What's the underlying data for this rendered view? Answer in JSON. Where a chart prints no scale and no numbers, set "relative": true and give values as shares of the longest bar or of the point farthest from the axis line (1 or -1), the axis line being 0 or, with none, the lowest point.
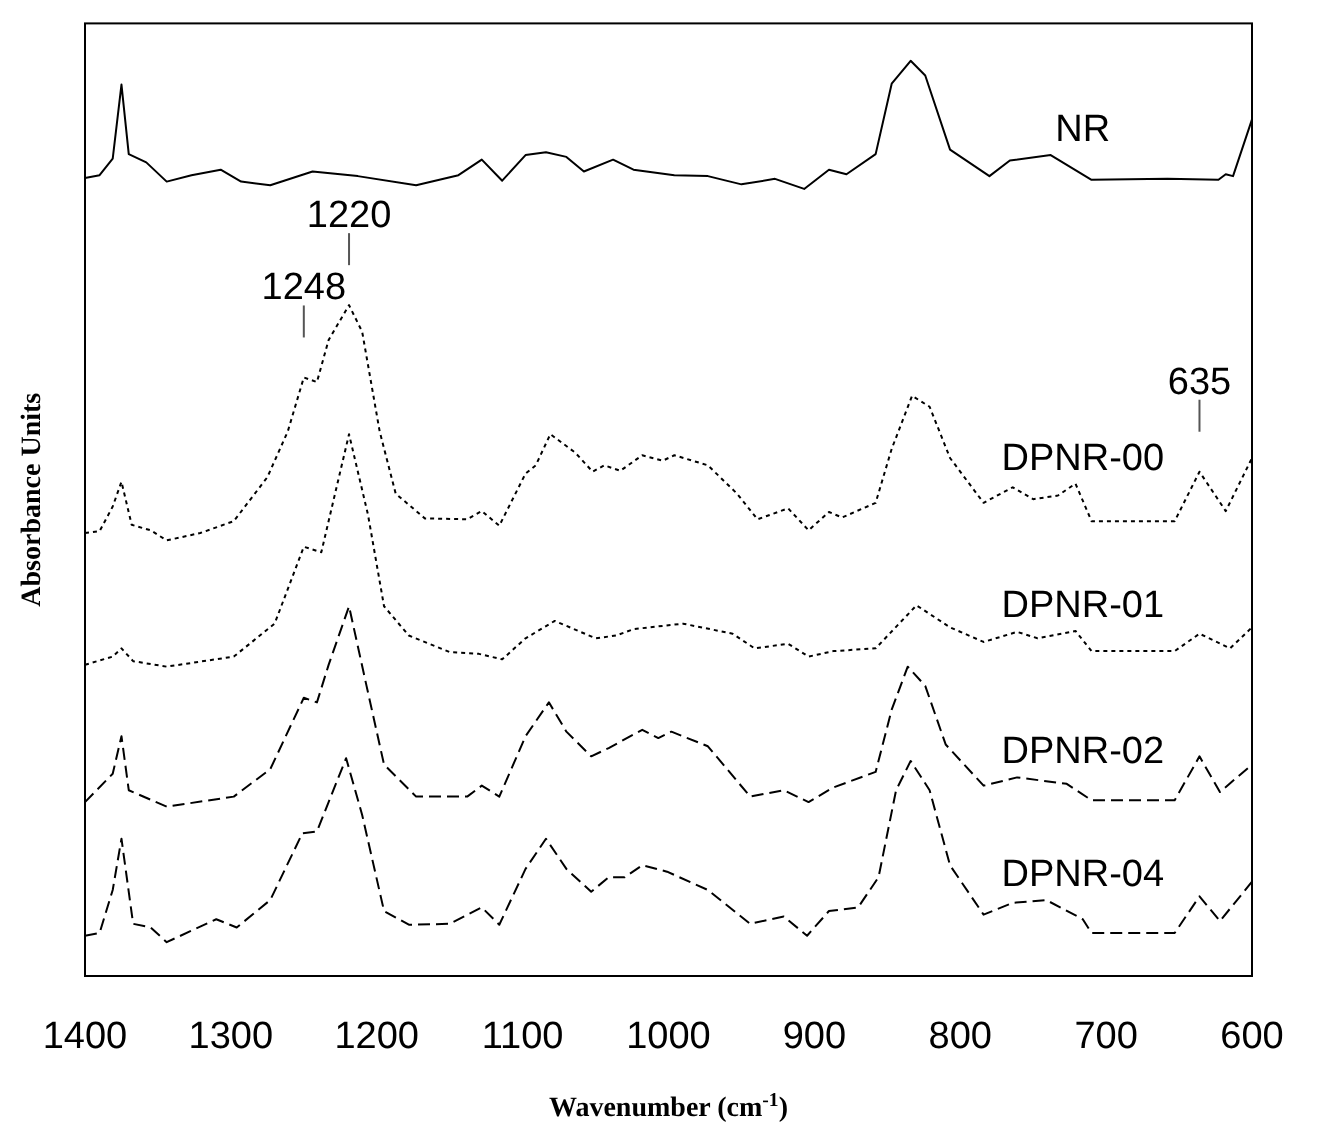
{
  "chart_data": {
    "type": "line",
    "relative": true,
    "xlabel": "Wavenumber (cm$^{-1}$)",
    "ylabel": "Absorbance Units",
    "xlim": [
      1400,
      600
    ],
    "xticks": [
      1400,
      1300,
      1200,
      1100,
      1000,
      900,
      800,
      700,
      600
    ],
    "tick_labels": "x",
    "grid": false,
    "marker": "none",
    "annotations": [
      {
        "text": "1220",
        "x": 1219,
        "y": 0.733
      },
      {
        "text": "1248",
        "x": 1250,
        "y": 0.654
      },
      {
        "text": "635",
        "x": 636,
        "y": 0.551
      }
    ],
    "series": [
      {
        "name": "NR",
        "color": "#000000",
        "line_style": "solid",
        "x": [
          1400,
          1390,
          1381,
          1375,
          1370,
          1358,
          1344,
          1327,
          1307,
          1293,
          1273,
          1244,
          1213,
          1173,
          1144,
          1128,
          1114,
          1098,
          1084,
          1070,
          1058,
          1038,
          1024,
          996,
          973,
          950,
          927,
          907,
          890,
          878,
          858,
          847,
          834,
          824,
          807,
          780,
          766,
          738,
          710,
          658,
          623,
          618,
          613,
          600
        ],
        "values": [
          0.872,
          0.875,
          0.893,
          0.974,
          0.898,
          0.889,
          0.868,
          0.875,
          0.881,
          0.868,
          0.864,
          0.879,
          0.874,
          0.864,
          0.875,
          0.892,
          0.869,
          0.897,
          0.9,
          0.895,
          0.879,
          0.892,
          0.881,
          0.875,
          0.874,
          0.865,
          0.871,
          0.86,
          0.881,
          0.876,
          0.898,
          0.975,
          1,
          0.984,
          0.903,
          0.874,
          0.891,
          0.897,
          0.87,
          0.871,
          0.87,
          0.876,
          0.874,
          0.936
        ]
      },
      {
        "name": "DPNR-00",
        "color": "#000000",
        "line_style": "dotted",
        "x": [
          1400,
          1390,
          1381,
          1375,
          1368,
          1355,
          1344,
          1321,
          1298,
          1275,
          1261,
          1250,
          1241,
          1233,
          1219,
          1210,
          1198,
          1187,
          1167,
          1138,
          1128,
          1116,
          1098,
          1091,
          1081,
          1064,
          1052,
          1044,
          1033,
          1018,
          1004,
          996,
          973,
          953,
          939,
          918,
          904,
          890,
          881,
          858,
          847,
          833,
          821,
          807,
          784,
          764,
          750,
          733,
          721,
          710,
          653,
          636,
          618,
          600
        ],
        "values": [
          0.484,
          0.486,
          0.513,
          0.54,
          0.493,
          0.487,
          0.476,
          0.484,
          0.497,
          0.545,
          0.595,
          0.654,
          0.649,
          0.695,
          0.733,
          0.704,
          0.595,
          0.527,
          0.5,
          0.499,
          0.508,
          0.492,
          0.549,
          0.558,
          0.592,
          0.572,
          0.551,
          0.558,
          0.552,
          0.569,
          0.563,
          0.569,
          0.558,
          0.527,
          0.499,
          0.511,
          0.487,
          0.507,
          0.501,
          0.517,
          0.576,
          0.634,
          0.622,
          0.566,
          0.517,
          0.534,
          0.521,
          0.525,
          0.538,
          0.497,
          0.497,
          0.551,
          0.508,
          0.566
        ]
      },
      {
        "name": "DPNR-01",
        "color": "#000000",
        "line_style": "dotted",
        "x": [
          1400,
          1381,
          1375,
          1367,
          1344,
          1298,
          1270,
          1250,
          1238,
          1228,
          1219,
          1206,
          1195,
          1178,
          1150,
          1130,
          1114,
          1098,
          1078,
          1050,
          1036,
          1024,
          990,
          956,
          941,
          918,
          904,
          887,
          858,
          830,
          807,
          784,
          761,
          747,
          721,
          710,
          653,
          636,
          615,
          600
        ],
        "values": [
          0.34,
          0.349,
          0.358,
          0.344,
          0.338,
          0.349,
          0.385,
          0.469,
          0.463,
          0.531,
          0.592,
          0.504,
          0.404,
          0.372,
          0.354,
          0.352,
          0.346,
          0.369,
          0.388,
          0.369,
          0.372,
          0.379,
          0.385,
          0.374,
          0.358,
          0.363,
          0.349,
          0.355,
          0.358,
          0.405,
          0.381,
          0.365,
          0.376,
          0.369,
          0.377,
          0.355,
          0.355,
          0.374,
          0.358,
          0.381
        ]
      },
      {
        "name": "DPNR-02",
        "color": "#000000",
        "line_style": "dashed",
        "x": [
          1400,
          1381,
          1375,
          1370,
          1344,
          1298,
          1273,
          1250,
          1241,
          1233,
          1219,
          1207,
          1195,
          1173,
          1138,
          1128,
          1116,
          1098,
          1082,
          1070,
          1053,
          1041,
          1018,
          1007,
          998,
          973,
          944,
          921,
          904,
          887,
          858,
          847,
          836,
          824,
          810,
          784,
          761,
          727,
          710,
          653,
          636,
          622,
          600
        ],
        "values": [
          0.19,
          0.221,
          0.262,
          0.203,
          0.185,
          0.196,
          0.226,
          0.304,
          0.299,
          0.34,
          0.404,
          0.317,
          0.231,
          0.196,
          0.196,
          0.208,
          0.196,
          0.262,
          0.299,
          0.267,
          0.24,
          0.249,
          0.269,
          0.26,
          0.267,
          0.251,
          0.196,
          0.203,
          0.19,
          0.206,
          0.223,
          0.291,
          0.338,
          0.317,
          0.253,
          0.208,
          0.217,
          0.21,
          0.192,
          0.192,
          0.24,
          0.201,
          0.231
        ]
      },
      {
        "name": "DPNR-04",
        "color": "#000000",
        "line_style": "dashed",
        "x": [
          1400,
          1390,
          1381,
          1375,
          1367,
          1355,
          1344,
          1310,
          1296,
          1273,
          1251,
          1241,
          1233,
          1221,
          1210,
          1195,
          1178,
          1150,
          1128,
          1116,
          1098,
          1084,
          1070,
          1053,
          1041,
          1030,
          1018,
          1001,
          973,
          944,
          921,
          905,
          890,
          870,
          856,
          844,
          834,
          821,
          807,
          784,
          764,
          741,
          716,
          710,
          653,
          636,
          622,
          600
        ],
        "values": [
          0.044,
          0.047,
          0.094,
          0.15,
          0.057,
          0.053,
          0.037,
          0.062,
          0.053,
          0.083,
          0.156,
          0.158,
          0.19,
          0.238,
          0.176,
          0.071,
          0.056,
          0.057,
          0.075,
          0.056,
          0.117,
          0.15,
          0.117,
          0.092,
          0.108,
          0.108,
          0.121,
          0.114,
          0.094,
          0.057,
          0.065,
          0.044,
          0.071,
          0.075,
          0.108,
          0.203,
          0.235,
          0.203,
          0.121,
          0.067,
          0.08,
          0.083,
          0.062,
          0.047,
          0.047,
          0.087,
          0.06,
          0.103
        ]
      }
    ]
  }
}
